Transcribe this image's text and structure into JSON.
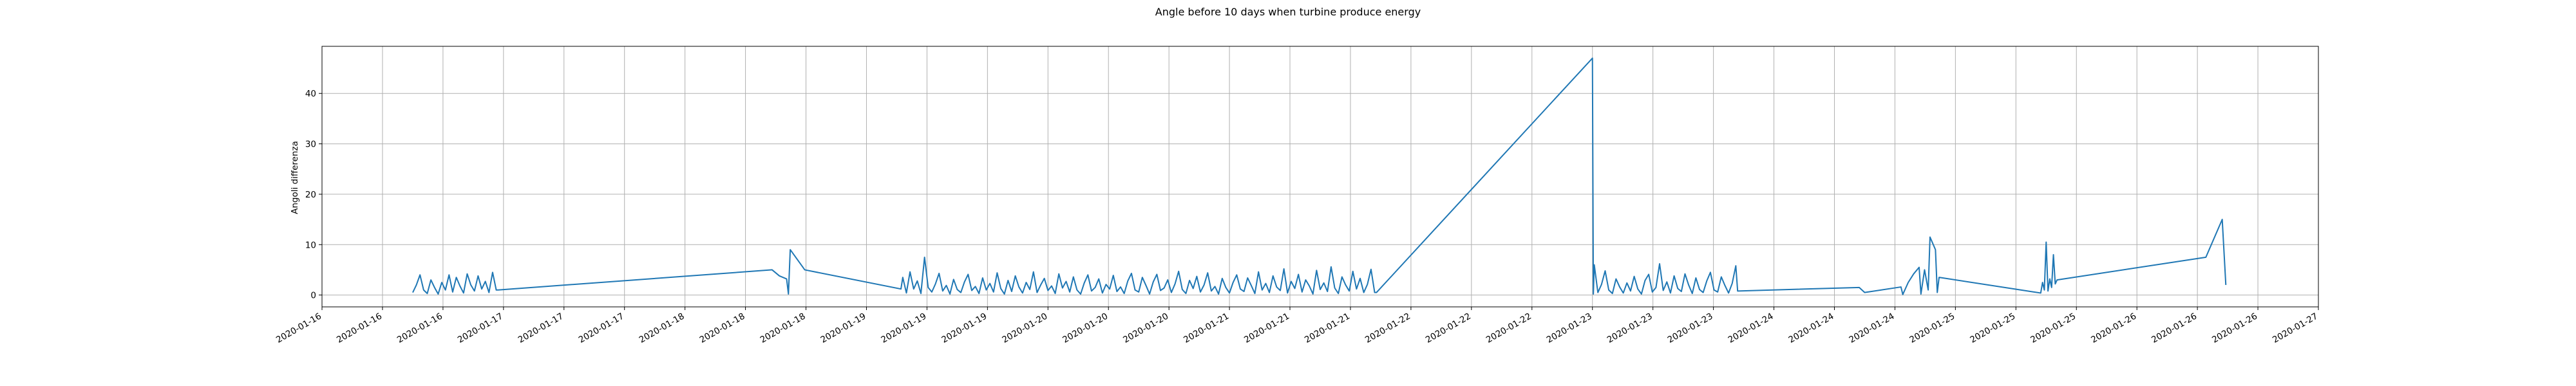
{
  "chart_data": {
    "type": "line",
    "title": "Angle before 10 days when turbine produce energy",
    "y_label": "Angoli differenza",
    "color": "#1f77b4",
    "grid": true,
    "xlim": [
      16.0,
      27.0
    ],
    "ylim": [
      -2.35,
      49.35
    ],
    "yticks": [
      0,
      10,
      20,
      30,
      40
    ],
    "xticks": [
      {
        "value": 16.0,
        "label": "2020-01-16"
      },
      {
        "value": 16.3333,
        "label": "2020-01-16"
      },
      {
        "value": 16.6667,
        "label": "2020-01-16"
      },
      {
        "value": 17.0,
        "label": "2020-01-17"
      },
      {
        "value": 17.3333,
        "label": "2020-01-17"
      },
      {
        "value": 17.6667,
        "label": "2020-01-17"
      },
      {
        "value": 18.0,
        "label": "2020-01-18"
      },
      {
        "value": 18.3333,
        "label": "2020-01-18"
      },
      {
        "value": 18.6667,
        "label": "2020-01-18"
      },
      {
        "value": 19.0,
        "label": "2020-01-19"
      },
      {
        "value": 19.3333,
        "label": "2020-01-19"
      },
      {
        "value": 19.6667,
        "label": "2020-01-19"
      },
      {
        "value": 20.0,
        "label": "2020-01-20"
      },
      {
        "value": 20.3333,
        "label": "2020-01-20"
      },
      {
        "value": 20.6667,
        "label": "2020-01-20"
      },
      {
        "value": 21.0,
        "label": "2020-01-21"
      },
      {
        "value": 21.3333,
        "label": "2020-01-21"
      },
      {
        "value": 21.6667,
        "label": "2020-01-21"
      },
      {
        "value": 22.0,
        "label": "2020-01-22"
      },
      {
        "value": 22.3333,
        "label": "2020-01-22"
      },
      {
        "value": 22.6667,
        "label": "2020-01-22"
      },
      {
        "value": 23.0,
        "label": "2020-01-23"
      },
      {
        "value": 23.3333,
        "label": "2020-01-23"
      },
      {
        "value": 23.6667,
        "label": "2020-01-23"
      },
      {
        "value": 24.0,
        "label": "2020-01-24"
      },
      {
        "value": 24.3333,
        "label": "2020-01-24"
      },
      {
        "value": 24.6667,
        "label": "2020-01-24"
      },
      {
        "value": 25.0,
        "label": "2020-01-25"
      },
      {
        "value": 25.3333,
        "label": "2020-01-25"
      },
      {
        "value": 25.6667,
        "label": "2020-01-25"
      },
      {
        "value": 26.0,
        "label": "2020-01-26"
      },
      {
        "value": 26.3333,
        "label": "2020-01-26"
      },
      {
        "value": 26.6667,
        "label": "2020-01-26"
      },
      {
        "value": 27.0,
        "label": "2020-01-27"
      }
    ],
    "x": [
      16.5,
      16.52,
      16.54,
      16.56,
      16.58,
      16.6,
      16.62,
      16.64,
      16.66,
      16.68,
      16.7,
      16.72,
      16.74,
      16.76,
      16.78,
      16.8,
      16.82,
      16.84,
      16.86,
      16.88,
      16.9,
      16.92,
      16.94,
      16.96,
      16.97,
      18.48,
      18.52,
      18.56,
      18.57,
      18.58,
      18.66,
      19.19,
      19.2,
      19.22,
      19.24,
      19.26,
      19.28,
      19.3,
      19.32,
      19.34,
      19.36,
      19.38,
      19.4,
      19.42,
      19.44,
      19.46,
      19.48,
      19.5,
      19.52,
      19.54,
      19.56,
      19.58,
      19.6,
      19.62,
      19.64,
      19.66,
      19.68,
      19.7,
      19.72,
      19.74,
      19.76,
      19.78,
      19.8,
      19.82,
      19.84,
      19.86,
      19.88,
      19.9,
      19.92,
      19.94,
      19.96,
      19.98,
      20.0,
      20.02,
      20.04,
      20.06,
      20.08,
      20.1,
      20.12,
      20.14,
      20.16,
      20.18,
      20.2,
      20.22,
      20.24,
      20.26,
      20.28,
      20.3,
      20.32,
      20.34,
      20.36,
      20.38,
      20.4,
      20.42,
      20.44,
      20.46,
      20.48,
      20.5,
      20.52,
      20.54,
      20.56,
      20.58,
      20.6,
      20.62,
      20.64,
      20.66,
      20.68,
      20.7,
      20.72,
      20.74,
      20.76,
      20.78,
      20.8,
      20.82,
      20.84,
      20.86,
      20.88,
      20.9,
      20.92,
      20.94,
      20.96,
      20.98,
      21.0,
      21.02,
      21.04,
      21.06,
      21.08,
      21.1,
      21.12,
      21.14,
      21.16,
      21.18,
      21.2,
      21.22,
      21.24,
      21.26,
      21.28,
      21.3,
      21.32,
      21.34,
      21.36,
      21.38,
      21.4,
      21.42,
      21.44,
      21.46,
      21.48,
      21.5,
      21.52,
      21.54,
      21.56,
      21.58,
      21.6,
      21.62,
      21.64,
      21.66,
      21.68,
      21.7,
      21.72,
      21.74,
      21.76,
      21.78,
      21.8,
      21.81,
      23.0,
      23.005,
      23.01,
      23.03,
      23.05,
      23.07,
      23.09,
      23.11,
      23.13,
      23.15,
      23.17,
      23.19,
      23.21,
      23.23,
      23.25,
      23.27,
      23.29,
      23.31,
      23.33,
      23.35,
      23.37,
      23.39,
      23.41,
      23.43,
      23.45,
      23.47,
      23.49,
      23.51,
      23.53,
      23.55,
      23.57,
      23.59,
      23.61,
      23.63,
      23.65,
      23.67,
      23.69,
      23.71,
      23.73,
      23.75,
      23.77,
      23.79,
      23.8,
      24.47,
      24.5,
      24.7,
      24.71,
      24.74,
      24.77,
      24.8,
      24.81,
      24.83,
      24.85,
      24.86,
      24.89,
      24.9,
      24.91,
      25.47,
      25.48,
      25.49,
      25.5,
      25.51,
      25.52,
      25.53,
      25.54,
      25.55,
      25.56,
      26.38,
      26.47,
      26.49
    ],
    "values": [
      0.5,
      2,
      4,
      1,
      0.3,
      3,
      1.5,
      0.2,
      2.5,
      1,
      4,
      0.6,
      3.5,
      1.8,
      0.4,
      4.2,
      2,
      0.8,
      3.8,
      1.2,
      2.7,
      0.5,
      4.5,
      1,
      1.0,
      5.0,
      3.8,
      3.2,
      0.2,
      9.0,
      5.0,
      1.2,
      3.5,
      0.4,
      4.6,
      1.2,
      2.8,
      0.3,
      7.5,
      1.5,
      0.6,
      2.2,
      4.3,
      0.8,
      1.9,
      0.2,
      3.1,
      1.1,
      0.5,
      2.6,
      4.1,
      0.9,
      1.7,
      0.3,
      3.4,
      1.0,
      2.3,
      0.6,
      4.4,
      1.3,
      0.2,
      2.9,
      0.7,
      3.8,
      1.6,
      0.4,
      2.5,
      1.1,
      4.6,
      0.5,
      2.0,
      3.3,
      0.9,
      1.8,
      0.3,
      4.2,
      1.4,
      2.7,
      0.6,
      3.6,
      1.0,
      0.2,
      2.4,
      4.0,
      0.8,
      1.5,
      3.2,
      0.4,
      2.1,
      1.2,
      3.9,
      0.7,
      1.6,
      0.3,
      2.8,
      4.3,
      1.0,
      0.6,
      3.5,
      1.9,
      0.2,
      2.6,
      4.1,
      0.9,
      1.4,
      3.0,
      0.5,
      2.2,
      4.7,
      1.1,
      0.3,
      2.9,
      1.3,
      3.7,
      0.6,
      2.0,
      4.4,
      0.8,
      1.7,
      0.2,
      3.3,
      1.5,
      0.4,
      2.5,
      4.0,
      1.2,
      0.7,
      3.4,
      1.9,
      0.3,
      4.6,
      1.0,
      2.3,
      0.5,
      3.8,
      1.6,
      0.9,
      5.2,
      0.4,
      2.7,
      1.3,
      4.1,
      0.6,
      3.0,
      1.8,
      0.2,
      4.9,
      1.1,
      2.4,
      0.7,
      5.6,
      1.4,
      0.3,
      3.6,
      2.0,
      0.8,
      4.7,
      1.2,
      3.3,
      0.5,
      2.1,
      5.1,
      0.5,
      0.5,
      47.0,
      0.2,
      6.0,
      0.5,
      2.1,
      4.8,
      1.0,
      0.3,
      3.2,
      1.6,
      0.4,
      2.4,
      0.8,
      3.7,
      1.2,
      0.2,
      2.9,
      4.1,
      0.6,
      1.5,
      6.2,
      0.9,
      2.6,
      0.4,
      3.8,
      1.3,
      0.7,
      4.2,
      2.0,
      0.3,
      3.4,
      1.1,
      0.5,
      2.8,
      4.5,
      1.0,
      0.6,
      3.6,
      1.9,
      0.4,
      2.3,
      5.8,
      0.8,
      1.5,
      0.5,
      1.6,
      0.1,
      2.5,
      4.2,
      5.5,
      0.2,
      5.0,
      1.0,
      11.5,
      9.0,
      0.5,
      3.5,
      0.4,
      2.5,
      1.0,
      10.5,
      0.8,
      3.2,
      1.5,
      8.0,
      2.2,
      3.0,
      7.5,
      15.0,
      2.0
    ]
  }
}
